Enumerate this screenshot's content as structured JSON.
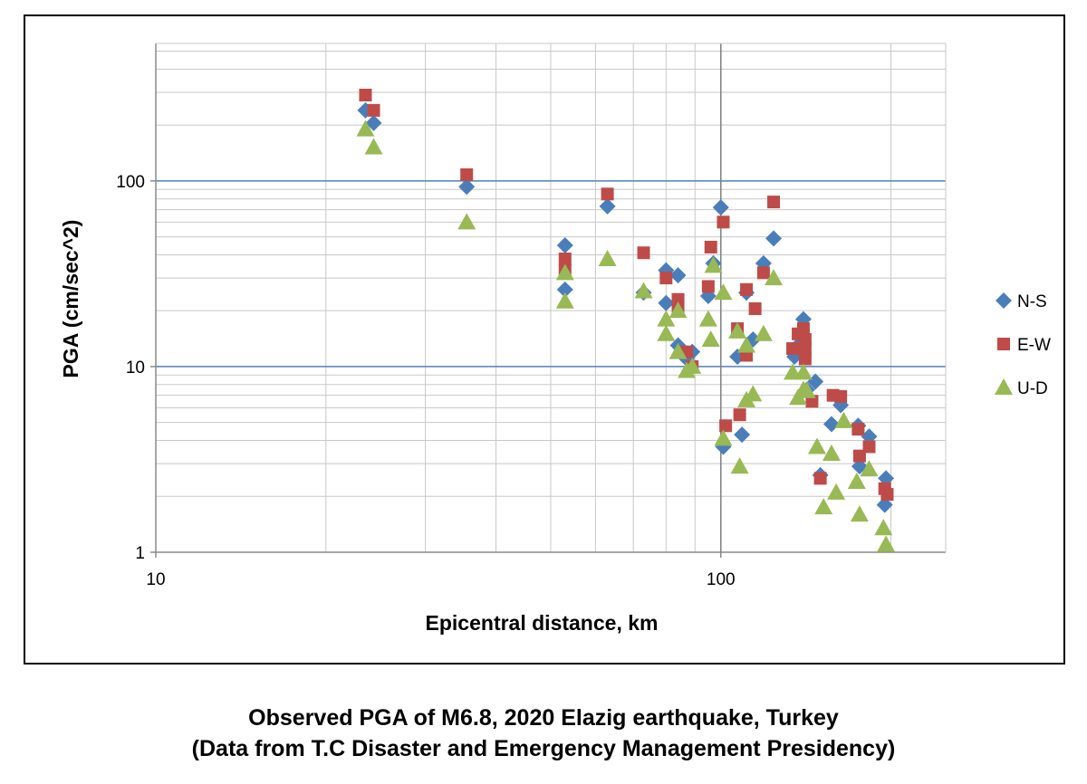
{
  "caption": {
    "line1": "Observed PGA of M6.8, 2020 Elazig earthquake, Turkey",
    "line2": "(Data from T.C Disaster and Emergency Management Presidency)"
  },
  "chart_data": {
    "type": "scatter",
    "title": "",
    "xlabel": "Epicentral distance, km",
    "ylabel": "PGA (cm/sec^2)",
    "xscale": "log",
    "yscale": "log",
    "xlim": [
      10,
      250
    ],
    "ylim": [
      1,
      550
    ],
    "x_ticks": [
      "10",
      "100"
    ],
    "y_ticks": [
      "1",
      "10",
      "100"
    ],
    "grid": true,
    "legend": "right",
    "series": [
      {
        "name": "N-S",
        "marker": "diamond",
        "color": "#4a7ebb",
        "points": [
          [
            23.5,
            240
          ],
          [
            24.3,
            205
          ],
          [
            35.5,
            93
          ],
          [
            53,
            45
          ],
          [
            53,
            26
          ],
          [
            63,
            73
          ],
          [
            73,
            25
          ],
          [
            80,
            33
          ],
          [
            80,
            22
          ],
          [
            84,
            31
          ],
          [
            84,
            13
          ],
          [
            87,
            11
          ],
          [
            89,
            12
          ],
          [
            95,
            24
          ],
          [
            97,
            36
          ],
          [
            100,
            72
          ],
          [
            101,
            3.7
          ],
          [
            107,
            11.3
          ],
          [
            109,
            4.3
          ],
          [
            111,
            25
          ],
          [
            114,
            14
          ],
          [
            119,
            36
          ],
          [
            124,
            49
          ],
          [
            135,
            11.3
          ],
          [
            137,
            13
          ],
          [
            140,
            18
          ],
          [
            142,
            7.5
          ],
          [
            147,
            8.3
          ],
          [
            150,
            2.6
          ],
          [
            157,
            4.9
          ],
          [
            163,
            6.2
          ],
          [
            175,
            4.8
          ],
          [
            176,
            2.9
          ],
          [
            183,
            4.2
          ],
          [
            195,
            1.8
          ],
          [
            196,
            2.5
          ]
        ]
      },
      {
        "name": "E-W",
        "marker": "square",
        "color": "#be4b48",
        "points": [
          [
            23.5,
            290
          ],
          [
            24.3,
            240
          ],
          [
            35.5,
            108
          ],
          [
            53,
            38
          ],
          [
            53,
            33
          ],
          [
            63,
            85
          ],
          [
            73,
            41
          ],
          [
            80,
            30
          ],
          [
            84,
            23
          ],
          [
            84,
            21
          ],
          [
            87,
            12
          ],
          [
            89,
            10
          ],
          [
            95,
            27
          ],
          [
            96,
            44
          ],
          [
            101,
            60
          ],
          [
            102,
            4.8
          ],
          [
            107,
            16
          ],
          [
            108,
            5.5
          ],
          [
            111,
            26
          ],
          [
            111,
            11.5
          ],
          [
            115,
            20.5
          ],
          [
            119,
            32
          ],
          [
            124,
            77
          ],
          [
            134,
            12.5
          ],
          [
            137,
            15
          ],
          [
            140,
            16
          ],
          [
            141,
            14
          ],
          [
            141,
            12.5
          ],
          [
            141,
            11
          ],
          [
            145,
            6.5
          ],
          [
            150,
            2.5
          ],
          [
            158,
            7
          ],
          [
            163,
            6.9
          ],
          [
            175,
            4.6
          ],
          [
            176,
            3.3
          ],
          [
            183,
            3.7
          ],
          [
            195,
            2.2
          ],
          [
            197,
            2.05
          ]
        ]
      },
      {
        "name": "U-D",
        "marker": "triangle",
        "color": "#98b954",
        "points": [
          [
            23.5,
            190
          ],
          [
            24.3,
            152
          ],
          [
            35.5,
            60
          ],
          [
            53,
            32
          ],
          [
            53,
            22.5
          ],
          [
            63,
            38
          ],
          [
            73,
            25.5
          ],
          [
            80,
            18
          ],
          [
            80,
            15
          ],
          [
            84,
            20
          ],
          [
            84,
            12
          ],
          [
            87,
            9.5
          ],
          [
            89,
            10
          ],
          [
            95,
            18
          ],
          [
            96,
            14
          ],
          [
            97,
            35
          ],
          [
            101,
            25
          ],
          [
            101,
            4.1
          ],
          [
            107,
            15.5
          ],
          [
            108,
            2.9
          ],
          [
            111,
            13
          ],
          [
            111,
            6.6
          ],
          [
            114,
            7.1
          ],
          [
            119,
            15
          ],
          [
            124,
            30
          ],
          [
            134,
            9.3
          ],
          [
            137,
            6.8
          ],
          [
            140,
            7.5
          ],
          [
            140,
            9.3
          ],
          [
            142,
            7.4
          ],
          [
            148,
            3.7
          ],
          [
            152,
            1.75
          ],
          [
            157,
            3.4
          ],
          [
            160,
            2.1
          ],
          [
            165,
            5.1
          ],
          [
            174,
            2.4
          ],
          [
            176,
            1.6
          ],
          [
            183,
            2.8
          ],
          [
            194,
            1.35
          ],
          [
            196,
            1.1
          ]
        ]
      }
    ]
  }
}
